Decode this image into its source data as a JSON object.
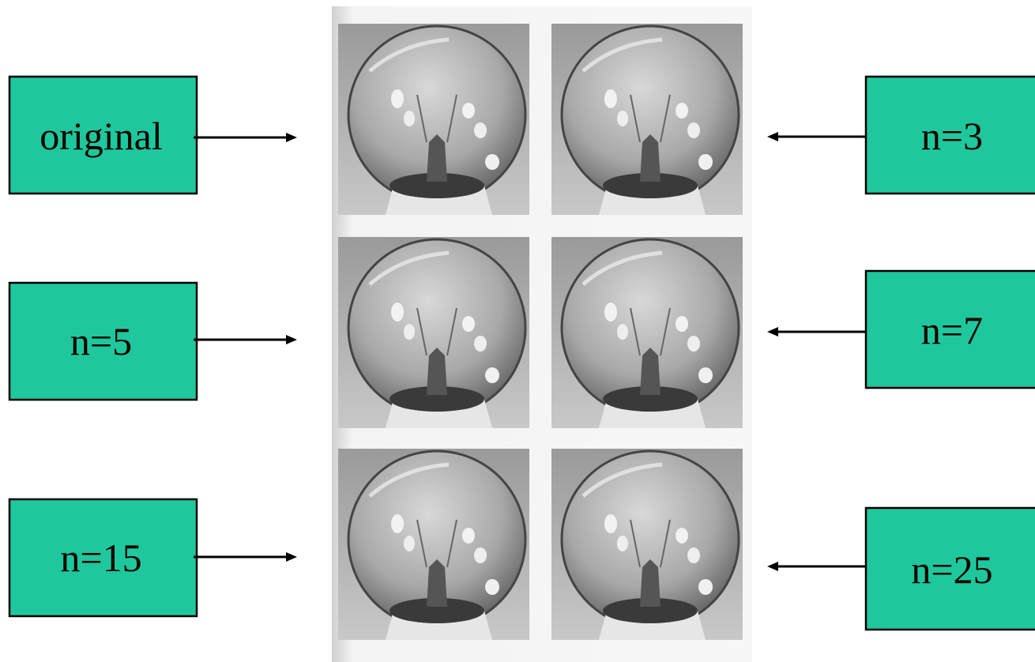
{
  "boxes": [
    {
      "label": "original"
    },
    {
      "label": "n=3"
    },
    {
      "label": "n=5"
    },
    {
      "label": "n=7"
    },
    {
      "label": "n=15"
    },
    {
      "label": "n=25"
    }
  ]
}
